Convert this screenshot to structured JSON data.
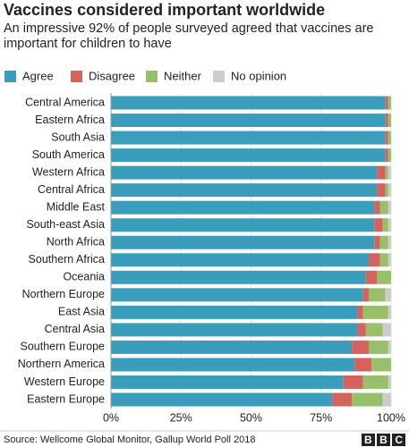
{
  "chart_data": {
    "type": "stacked-bar-horizontal",
    "title": "Vaccines considered important worldwide",
    "subtitle": "An impressive 92% of people surveyed agreed that vaccines are important for children to have",
    "categories": [
      "Central America",
      "Eastern Africa",
      "South Asia",
      "South America",
      "Western Africa",
      "Central Africa",
      "Middle East",
      "South-east Asia",
      "North Africa",
      "Southern Africa",
      "Oceania",
      "Northern Europe",
      "East Asia",
      "Central Asia",
      "Southern Europe",
      "Northern America",
      "Western Europe",
      "Eastern Europe"
    ],
    "series": [
      {
        "name": "Agree",
        "color": "#3b9dbc",
        "values": [
          98,
          98,
          98,
          98,
          95,
          95,
          94,
          94,
          94,
          92,
          91,
          90,
          88,
          88,
          86,
          87,
          83,
          79
        ]
      },
      {
        "name": "Disagree",
        "color": "#d6625d",
        "values": [
          1,
          1,
          1,
          1,
          3,
          3,
          2,
          3,
          2,
          4,
          4,
          2,
          2,
          3,
          6,
          6,
          7,
          7
        ]
      },
      {
        "name": "Neither",
        "color": "#98c06b",
        "values": [
          1,
          1,
          1,
          1,
          1,
          1,
          3,
          2,
          3,
          3,
          5,
          6,
          9,
          6,
          7,
          7,
          9,
          11
        ]
      },
      {
        "name": "No opinion",
        "color": "#cccccc",
        "values": [
          0,
          0,
          0,
          0,
          1,
          1,
          1,
          1,
          1,
          1,
          0,
          2,
          1,
          3,
          1,
          0,
          1,
          3
        ]
      }
    ],
    "xlim": [
      0,
      100
    ],
    "xticks": [
      {
        "value": 0,
        "label": "0%"
      },
      {
        "value": 25,
        "label": "25%"
      },
      {
        "value": 50,
        "label": "50%"
      },
      {
        "value": 75,
        "label": "75%"
      },
      {
        "value": 100,
        "label": "100%"
      }
    ],
    "grid": true,
    "source": "Source: Wellcome Global Monitor, Gallup World Poll 2018",
    "logo": "BBC"
  }
}
